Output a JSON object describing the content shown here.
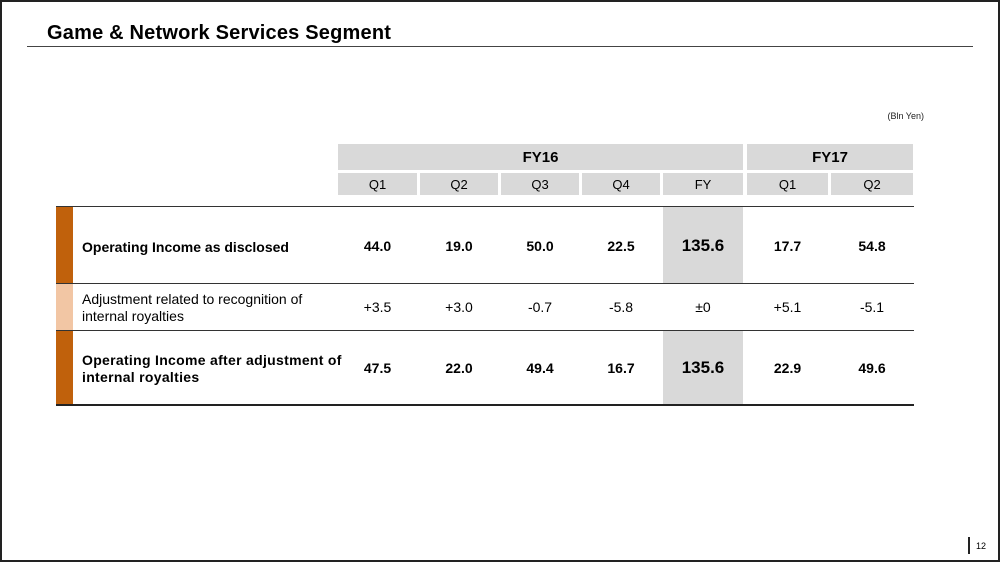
{
  "slide": {
    "title": "Game & Network Services Segment",
    "unit": "(Bln Yen)",
    "page_number": "12"
  },
  "table": {
    "groups": [
      {
        "label": "FY16"
      },
      {
        "label": "FY17"
      }
    ],
    "columns": [
      "Q1",
      "Q2",
      "Q3",
      "Q4",
      "FY",
      "Q1",
      "Q2"
    ],
    "rows": [
      {
        "label": "Operating Income as disclosed",
        "values": [
          "44.0",
          "19.0",
          "50.0",
          "22.5",
          "135.6",
          "17.7",
          "54.8"
        ]
      },
      {
        "label": "Adjustment related to recognition of internal royalties",
        "values": [
          "+3.5",
          "+3.0",
          "-0.7",
          "-5.8",
          "±0",
          "+5.1",
          "-5.1"
        ]
      },
      {
        "label": "Operating Income after adjustment of internal royalties",
        "values": [
          "47.5",
          "22.0",
          "49.4",
          "16.7",
          "135.6",
          "22.9",
          "49.6"
        ]
      }
    ]
  },
  "colors": {
    "accent_dark": "#c0610c",
    "accent_light": "#f2c6a4",
    "header_bg": "#d9d9d9"
  }
}
